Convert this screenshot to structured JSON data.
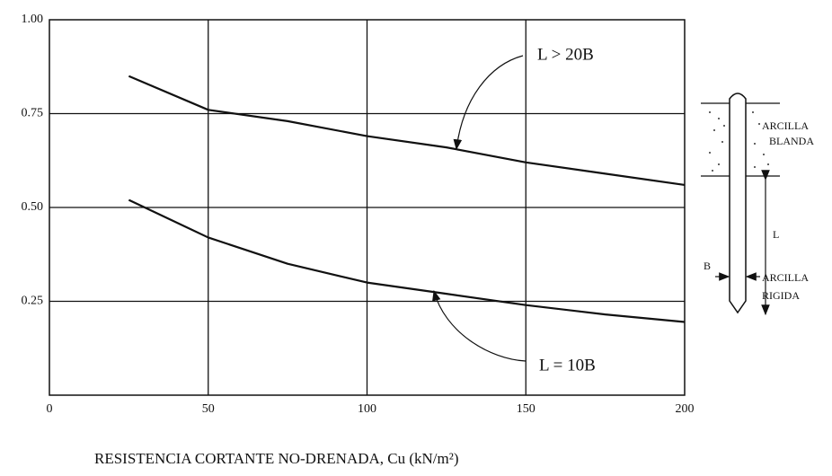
{
  "chart_data": {
    "type": "line",
    "x_label": "RESISTENCIA CORTANTE NO-DRENADA, Cu (kN/m²)",
    "x": [
      25,
      50,
      75,
      100,
      125,
      150,
      175,
      200
    ],
    "series": [
      {
        "name": "L > 20B",
        "color": "#111111",
        "values": [
          0.85,
          0.76,
          0.73,
          0.69,
          0.66,
          0.62,
          0.59,
          0.56
        ]
      },
      {
        "name": "L = 10B",
        "color": "#111111",
        "values": [
          0.52,
          0.42,
          0.35,
          0.3,
          0.27,
          0.24,
          0.215,
          0.195
        ]
      }
    ],
    "xlim": [
      0,
      200
    ],
    "xticks": [
      0,
      50,
      100,
      150,
      200
    ],
    "ylim": [
      0,
      1
    ],
    "yticks": [
      0.25,
      {
        "value": 0.5,
        "label": "0.50"
      },
      0.75,
      {
        "value": 1,
        "label": "1.00"
      }
    ],
    "grid": true
  },
  "diagram": {
    "soft_clay": [
      "ARCILLA",
      "BLANDA"
    ],
    "length": "L",
    "width": "B",
    "stiff_clay": [
      "ARCILLA",
      "RIGIDA"
    ]
  }
}
